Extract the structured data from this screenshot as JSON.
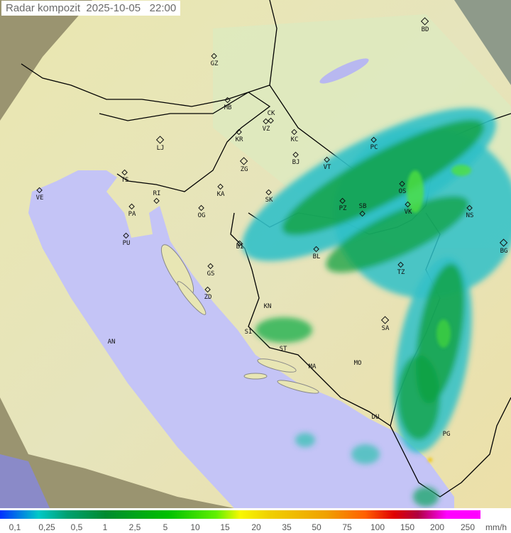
{
  "header": {
    "title": "Radar kompozit",
    "date": "2025-10-05",
    "time": "22:00"
  },
  "cities": [
    "BD",
    "GZ",
    "MB",
    "CK",
    "VZ",
    "KR",
    "KC",
    "LJ",
    "ZG",
    "TS",
    "VE",
    "RI",
    "KA",
    "PA",
    "OG",
    "PU",
    "BJ",
    "VT",
    "PC",
    "OS",
    "SK",
    "PZ",
    "SB",
    "VK",
    "NS",
    "BG",
    "BI",
    "BL",
    "TZ",
    "SA",
    "GS",
    "ZD",
    "KN",
    "SI",
    "ST",
    "AN",
    "MA",
    "MO",
    "DU",
    "PG"
  ],
  "legend": {
    "ticks": [
      "0,1",
      "0,25",
      "0,5",
      "1",
      "2,5",
      "5",
      "10",
      "15",
      "20",
      "35",
      "50",
      "75",
      "100",
      "150",
      "200",
      "250"
    ],
    "unit": "mm/h"
  },
  "colors": {
    "sea": "#c4c4f6",
    "land": "#e8e6b4",
    "outside": "#8a8a6a",
    "rain_light": "#20b8c0",
    "rain_moderate": "#10a040",
    "rain_heavy": "#50e030",
    "border": "#000000"
  }
}
